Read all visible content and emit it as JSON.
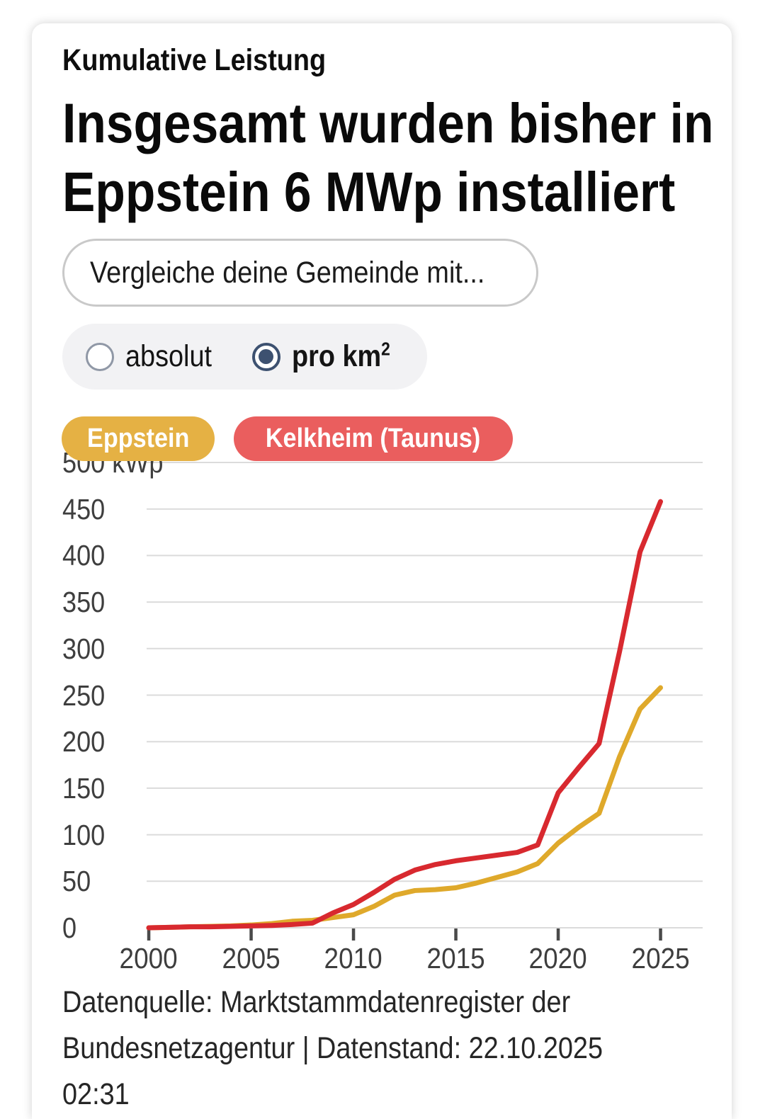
{
  "header": {
    "eyebrow": "Kumulative Leistung",
    "title_line1": "Insgesamt wurden bisher in",
    "title_line2": "Eppstein 6 MWp installiert"
  },
  "controls": {
    "compare_placeholder": "Vergleiche deine Gemeinde mit...",
    "radio_options": [
      {
        "label": "absolut",
        "selected": false
      },
      {
        "label": "pro km",
        "sup": "2",
        "selected": true
      }
    ],
    "radio_selected_color": "#3d5170"
  },
  "legend": {
    "chips": [
      {
        "label": "Eppstein",
        "color": "#e5b144"
      },
      {
        "label": "Kelkheim (Taunus)",
        "color": "#ea5e5e"
      }
    ]
  },
  "chart_data": {
    "type": "line",
    "unit": "kWp",
    "ylabel": "kWp pro km²",
    "ylim": [
      0,
      500
    ],
    "grid": true,
    "x": [
      2000,
      2001,
      2002,
      2003,
      2004,
      2005,
      2006,
      2007,
      2008,
      2009,
      2010,
      2011,
      2012,
      2013,
      2014,
      2015,
      2016,
      2017,
      2018,
      2019,
      2020,
      2021,
      2022,
      2023,
      2024,
      2025
    ],
    "x_ticks": [
      2000,
      2005,
      2010,
      2015,
      2020,
      2025
    ],
    "y_ticks": [
      0,
      50,
      100,
      150,
      200,
      250,
      300,
      350,
      400,
      450,
      500
    ],
    "y_unit_tick": 500,
    "series": [
      {
        "name": "Eppstein",
        "color": "#dfa92b",
        "values": [
          0,
          0.5,
          1,
          1.5,
          2,
          3,
          4.5,
          7,
          8,
          11,
          14,
          23,
          35,
          40,
          41,
          43,
          48,
          54,
          60,
          69,
          91,
          108,
          123,
          184,
          235,
          258
        ]
      },
      {
        "name": "Kelkheim (Taunus)",
        "color": "#d8292f",
        "values": [
          0,
          0.5,
          1,
          1,
          1.5,
          2,
          2.5,
          3.5,
          5,
          16,
          25,
          38,
          52,
          62,
          68,
          72,
          75,
          78,
          81,
          89,
          145,
          172,
          198,
          297,
          404,
          458
        ]
      }
    ]
  },
  "footer": {
    "lines": [
      "Datenquelle: Marktstammdatenregister der",
      "Bundesnetzagentur | Datenstand: 22.10.2025",
      "02:31"
    ]
  }
}
